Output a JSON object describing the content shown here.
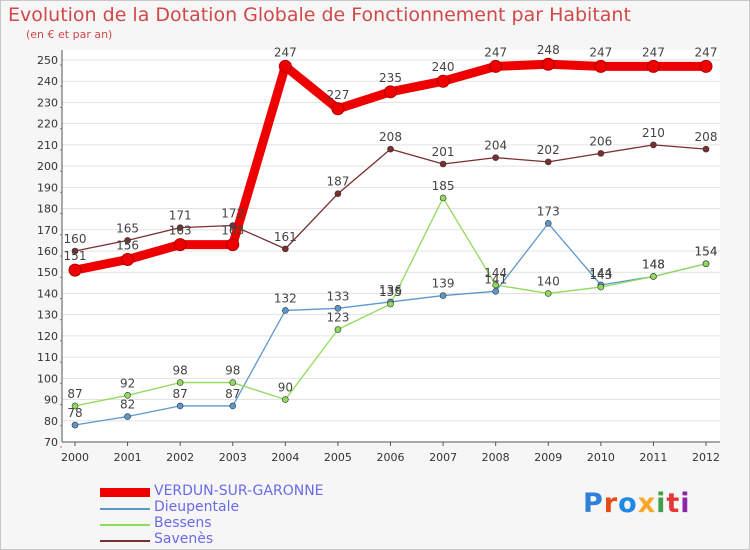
{
  "header": {
    "title": "Evolution de la Dotation Globale de Fonctionnement par Habitant",
    "subtitle": "(en € et par an)"
  },
  "logo": {
    "text": "Proxiti",
    "colors": [
      "#2f7fd8",
      "#e64a19",
      "#1e88e5",
      "#f9a825",
      "#43a047",
      "#e53935",
      "#8e24aa"
    ]
  },
  "chart_data": {
    "type": "line",
    "x": [
      "2000",
      "2001",
      "2002",
      "2003",
      "2004",
      "2005",
      "2006",
      "2007",
      "2008",
      "2009",
      "2010",
      "2011",
      "2012"
    ],
    "yticks": [
      70,
      80,
      90,
      100,
      110,
      120,
      130,
      140,
      150,
      160,
      170,
      180,
      190,
      200,
      210,
      220,
      230,
      240,
      250
    ],
    "ylim": [
      70,
      250
    ],
    "grid": "horizontal",
    "legend_position": "bottom-left",
    "series": [
      {
        "name": "VERDUN-SUR-GARONNE",
        "values": [
          151,
          156,
          163,
          163,
          247,
          227,
          235,
          240,
          247,
          248,
          247,
          247,
          247
        ],
        "color": "#ee0000",
        "width": 9,
        "marker": 6
      },
      {
        "name": "Dieupentale",
        "values": [
          78,
          82,
          87,
          87,
          132,
          133,
          136,
          139,
          141,
          173,
          144,
          148,
          154
        ],
        "color": "#5d97cc",
        "width": 1.3,
        "marker": 3
      },
      {
        "name": "Bessens",
        "values": [
          87,
          92,
          98,
          98,
          90,
          123,
          135,
          185,
          144,
          140,
          143,
          148,
          154
        ],
        "color": "#8fdb5c",
        "width": 1.3,
        "marker": 3
      },
      {
        "name": "Savenès",
        "values": [
          160,
          165,
          171,
          172,
          161,
          187,
          208,
          201,
          204,
          202,
          206,
          210,
          208
        ],
        "color": "#7a2f2f",
        "width": 1.3,
        "marker": 3
      }
    ]
  }
}
